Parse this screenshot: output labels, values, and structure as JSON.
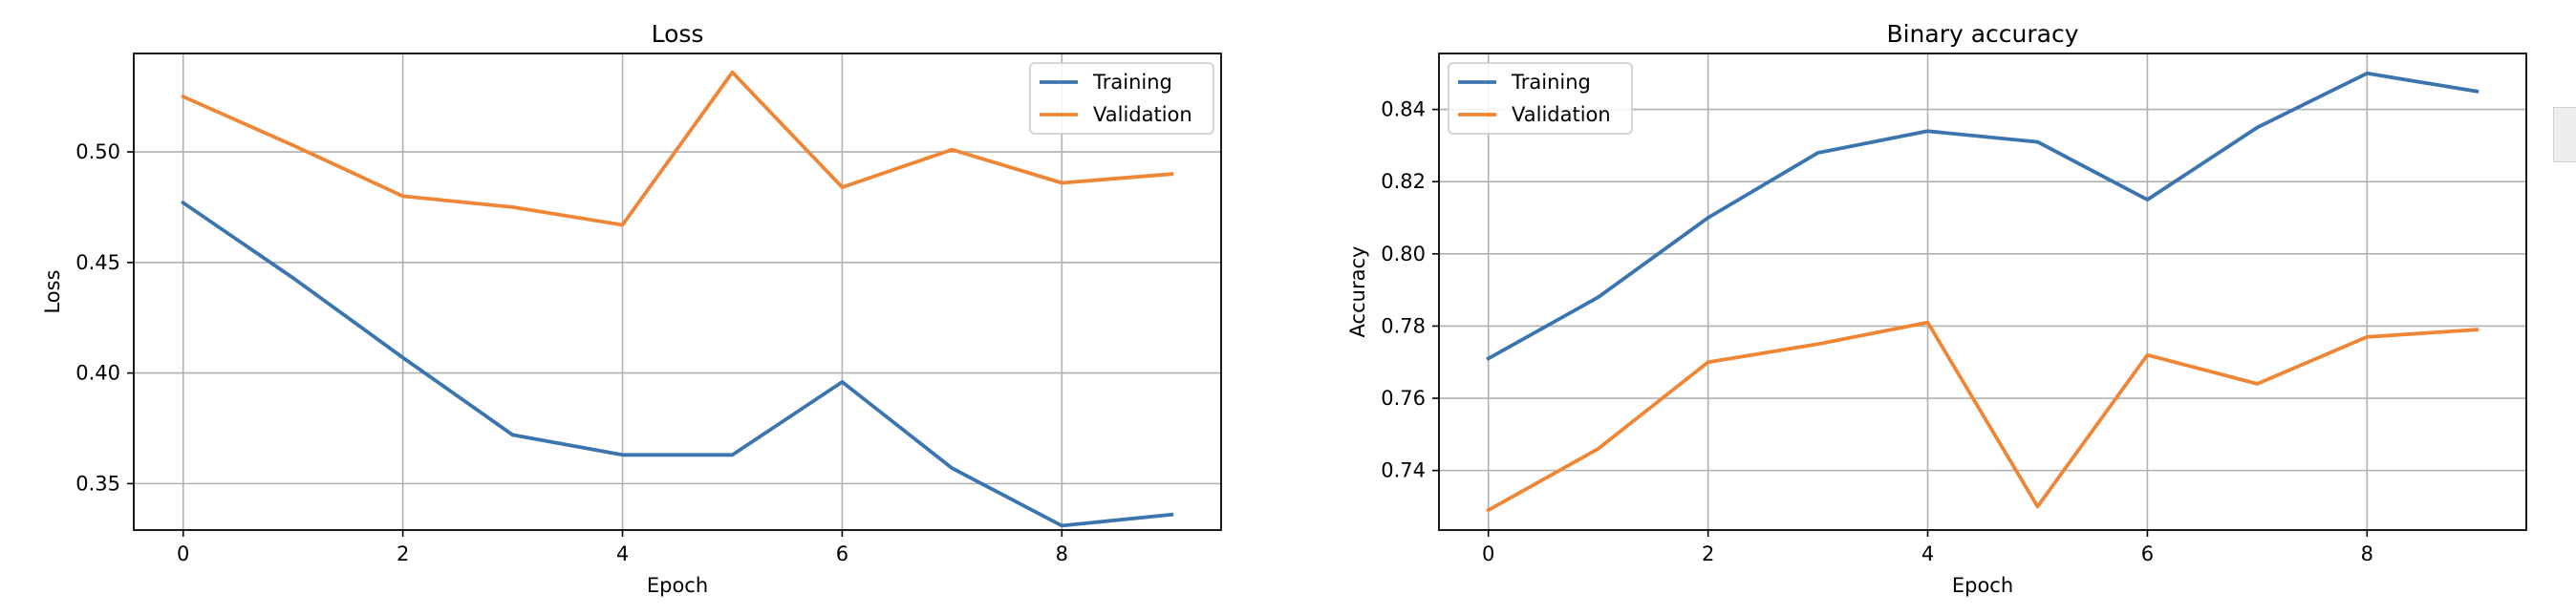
{
  "colors": {
    "training": "#3b75af",
    "validation": "#ef8636",
    "grid": "#b0b0b0",
    "axes": "#000000"
  },
  "chart_data": [
    {
      "type": "line",
      "title": "Loss",
      "xlabel": "Epoch",
      "ylabel": "Loss",
      "x": [
        0,
        1,
        2,
        3,
        4,
        5,
        6,
        7,
        8,
        9
      ],
      "xlim": [
        -0.45,
        9.45
      ],
      "ylim": [
        0.329,
        0.5445
      ],
      "xticks": [
        0,
        2,
        4,
        6,
        8
      ],
      "yticks": [
        0.35,
        0.4,
        0.45,
        0.5
      ],
      "ytick_labels": [
        "0.35",
        "0.40",
        "0.45",
        "0.50"
      ],
      "grid": true,
      "legend_position": "upper right",
      "series": [
        {
          "name": "Training",
          "color": "#3b75af",
          "values": [
            0.477,
            0.443,
            0.407,
            0.372,
            0.363,
            0.363,
            0.396,
            0.357,
            0.331,
            0.336
          ]
        },
        {
          "name": "Validation",
          "color": "#ef8636",
          "values": [
            0.525,
            0.503,
            0.48,
            0.475,
            0.467,
            0.536,
            0.484,
            0.501,
            0.486,
            0.49
          ]
        }
      ]
    },
    {
      "type": "line",
      "title": "Binary accuracy",
      "xlabel": "Epoch",
      "ylabel": "Accuracy",
      "x": [
        0,
        1,
        2,
        3,
        4,
        5,
        6,
        7,
        8,
        9
      ],
      "xlim": [
        -0.45,
        9.45
      ],
      "ylim": [
        0.7235,
        0.8555
      ],
      "xticks": [
        0,
        2,
        4,
        6,
        8
      ],
      "yticks": [
        0.74,
        0.76,
        0.78,
        0.8,
        0.82,
        0.84
      ],
      "ytick_labels": [
        "0.74",
        "0.76",
        "0.78",
        "0.80",
        "0.82",
        "0.84"
      ],
      "grid": true,
      "legend_position": "upper left",
      "series": [
        {
          "name": "Training",
          "color": "#3b75af",
          "values": [
            0.771,
            0.788,
            0.81,
            0.828,
            0.834,
            0.831,
            0.815,
            0.835,
            0.85,
            0.845
          ]
        },
        {
          "name": "Validation",
          "color": "#ef8636",
          "values": [
            0.729,
            0.746,
            0.77,
            0.775,
            0.781,
            0.73,
            0.772,
            0.764,
            0.777,
            0.779
          ]
        }
      ]
    }
  ]
}
